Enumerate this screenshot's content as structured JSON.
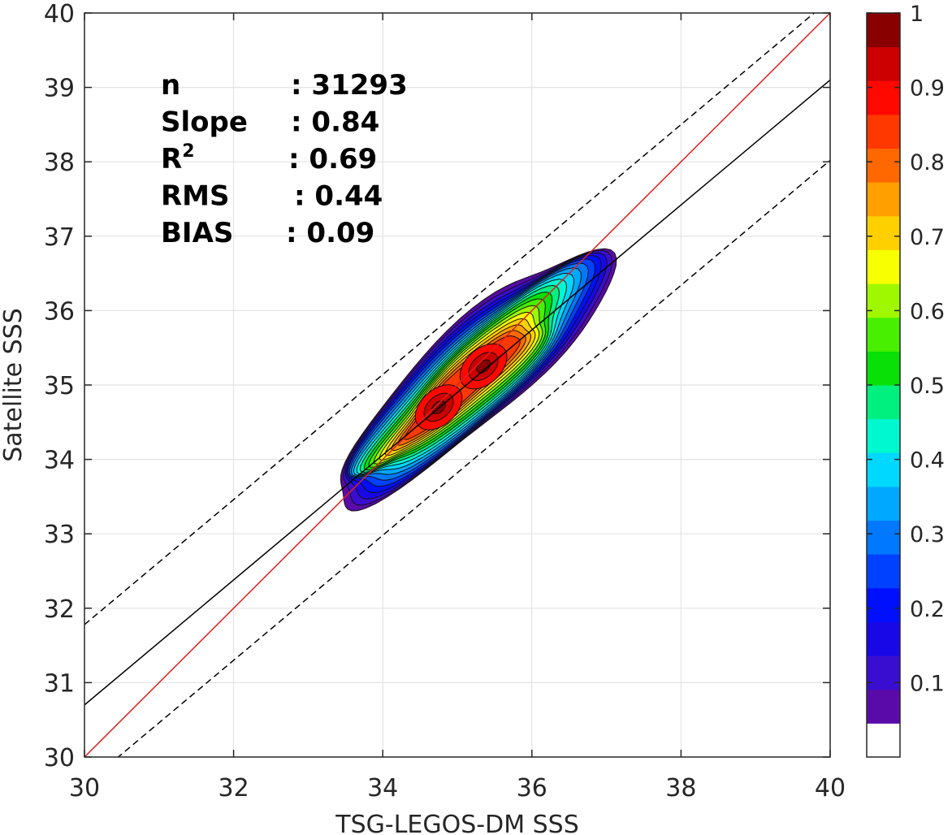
{
  "chart_data": {
    "type": "contour",
    "xlabel": "TSG-LEGOS-DM SSS",
    "ylabel": "Satellite SSS",
    "xlim": [
      30,
      40
    ],
    "ylim": [
      30,
      40
    ],
    "xticks": [
      30,
      32,
      34,
      36,
      38,
      40
    ],
    "yticks": [
      30,
      31,
      32,
      33,
      34,
      35,
      36,
      37,
      38,
      39,
      40
    ],
    "grid": true,
    "stats": [
      {
        "label": "n",
        "value": ": 31293"
      },
      {
        "label": "Slope",
        "value": ": 0.84"
      },
      {
        "label": "R",
        "sup": "2",
        "value": ": 0.69"
      },
      {
        "label": "RMS",
        "value": ": 0.44"
      },
      {
        "label": "BIAS",
        "value": ": 0.09"
      }
    ],
    "lines": [
      {
        "type": "one-to-one",
        "color": "#e02020",
        "style": "solid",
        "points": [
          [
            30,
            30
          ],
          [
            40,
            40
          ]
        ]
      },
      {
        "type": "regression",
        "color": "#000000",
        "style": "solid",
        "points": [
          [
            30,
            30.7
          ],
          [
            40,
            39.1
          ]
        ]
      },
      {
        "type": "upper-bound",
        "color": "#000000",
        "style": "dashed",
        "points": [
          [
            30,
            31.78
          ],
          [
            40,
            40.18
          ]
        ]
      },
      {
        "type": "lower-bound",
        "color": "#000000",
        "style": "dashed",
        "points": [
          [
            30,
            29.62
          ],
          [
            40,
            38.02
          ]
        ]
      }
    ],
    "density_peaks": [
      {
        "x": 34.75,
        "y": 34.7,
        "density": 0.95
      },
      {
        "x": 35.35,
        "y": 35.25,
        "density": 1.0
      }
    ],
    "contour_levels": [
      0.05,
      0.1,
      0.15,
      0.2,
      0.25,
      0.3,
      0.35,
      0.4,
      0.45,
      0.5,
      0.55,
      0.6,
      0.65,
      0.7,
      0.75,
      0.8,
      0.85,
      0.9,
      0.95,
      1.0
    ],
    "colorbar": {
      "ticks": [
        0.1,
        0.2,
        0.3,
        0.4,
        0.5,
        0.6,
        0.7,
        0.8,
        0.9,
        1
      ],
      "tick_labels": [
        "0.1",
        "0.2",
        "0.3",
        "0.4",
        "0.5",
        "0.6",
        "0.7",
        "0.8",
        "0.9",
        "1"
      ],
      "range": [
        0,
        1
      ],
      "colors": [
        "#ffffff",
        "#5a0aa8",
        "#3a0ed0",
        "#1808e8",
        "#0010ff",
        "#0040ff",
        "#0078ff",
        "#00a8ff",
        "#00d8ff",
        "#00f8d0",
        "#00f080",
        "#08e008",
        "#48f000",
        "#a0f800",
        "#f8ff00",
        "#ffd000",
        "#ffa000",
        "#ff6800",
        "#ff3800",
        "#ff0800",
        "#cc0000",
        "#880000"
      ]
    }
  }
}
